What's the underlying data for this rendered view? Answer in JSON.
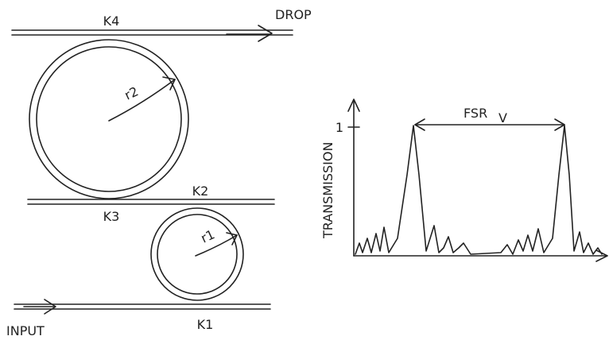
{
  "ring_resonator": {
    "drop_port": "DROP",
    "input_port": "INPUT",
    "couplers": [
      "K4",
      "K3",
      "K2",
      "K1"
    ],
    "radii": [
      "r2",
      "r1"
    ]
  },
  "spectrum": {
    "y_axis_label": "TRANSMISSION",
    "y_tick": "1",
    "fsr_label": "FSR",
    "fsr_subscript": "V"
  }
}
